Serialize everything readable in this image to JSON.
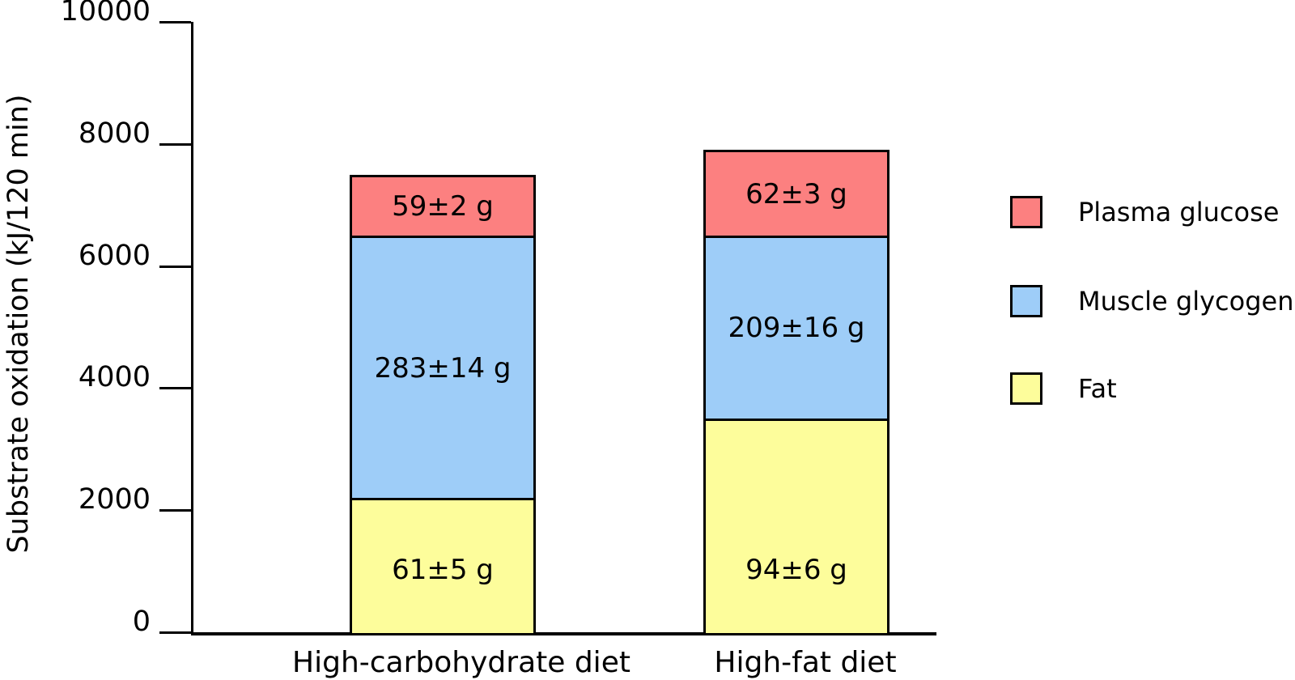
{
  "chart_data": {
    "type": "bar",
    "stacked": true,
    "title": "",
    "xlabel": "",
    "ylabel": "Substrate oxidation (kJ/120 min)",
    "ylim": [
      0,
      10000
    ],
    "yticks": [
      0,
      2000,
      4000,
      6000,
      8000,
      10000
    ],
    "grid": false,
    "categories": [
      "High-carbohydrate diet",
      "High-fat diet"
    ],
    "series": [
      {
        "name": "Fat",
        "color": "#FDFD9B",
        "values_kj": [
          2200,
          3500
        ],
        "bar_labels": [
          "61±5 g",
          "94±6 g"
        ]
      },
      {
        "name": "Muscle glycogen",
        "color": "#9ECDF8",
        "values_kj": [
          4300,
          3000
        ],
        "bar_labels": [
          "283±14 g",
          "209±16 g"
        ]
      },
      {
        "name": "Plasma glucose",
        "color": "#FC8080",
        "values_kj": [
          1000,
          1400
        ],
        "bar_labels": [
          "59±2 g",
          "62±3 g"
        ]
      }
    ],
    "legend": {
      "position": "right",
      "items": [
        {
          "label": "Plasma glucose",
          "color": "#FC8080"
        },
        {
          "label": "Muscle glycogen",
          "color": "#9ECDF8"
        },
        {
          "label": "Fat",
          "color": "#FDFD9B"
        }
      ]
    }
  }
}
